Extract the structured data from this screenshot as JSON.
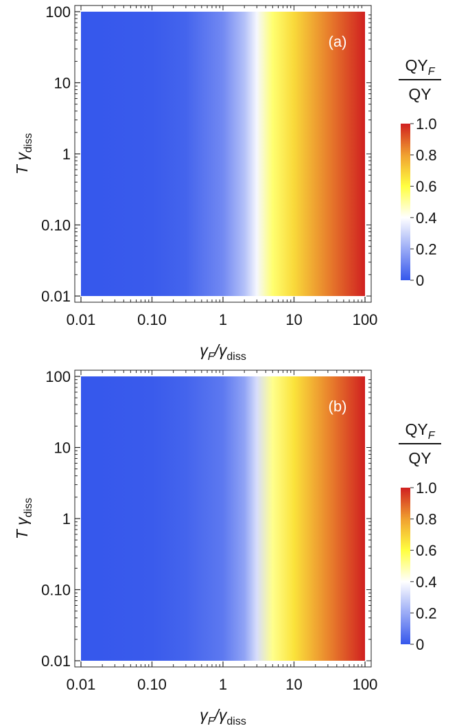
{
  "chart_data": [
    {
      "type": "heatmap",
      "panel_label": "(a)",
      "x_scale": "log",
      "y_scale": "log",
      "xlim": [
        0.01,
        100
      ],
      "ylim": [
        0.01,
        100
      ],
      "x_tick_labels": [
        "0.01",
        "0.10",
        "1",
        "10",
        "100"
      ],
      "y_tick_labels": [
        "0.01",
        "0.10",
        "1",
        "10",
        "100"
      ],
      "x_ticks": [
        0.01,
        0.1,
        1,
        10,
        100
      ],
      "y_ticks": [
        0.01,
        0.1,
        1,
        10,
        100
      ],
      "xlabel": {
        "main": "γ",
        "sub1": "F",
        "sep": "/γ",
        "sub2": "diss"
      },
      "ylabel": {
        "main": "T γ",
        "sub": "diss"
      },
      "colorbar": {
        "title_num": "QY",
        "title_num_sub": "F",
        "title_den": "QY",
        "range": [
          0,
          1
        ],
        "tick_labels": [
          "0",
          "0.2",
          "0.4",
          "0.6",
          "0.8",
          "1.0"
        ],
        "ticks": [
          0,
          0.2,
          0.4,
          0.6,
          0.8,
          1.0
        ]
      },
      "colors": [
        "#3557ec",
        "#ffffff",
        "#ffff40",
        "#f0a030",
        "#d02020"
      ],
      "value_vs_x": [
        {
          "x": 0.01,
          "value": 0.0
        },
        {
          "x": 0.1,
          "value": 0.01
        },
        {
          "x": 0.3,
          "value": 0.03
        },
        {
          "x": 1,
          "value": 0.12
        },
        {
          "x": 2,
          "value": 0.25
        },
        {
          "x": 3,
          "value": 0.38
        },
        {
          "x": 5,
          "value": 0.55
        },
        {
          "x": 10,
          "value": 0.68
        },
        {
          "x": 30,
          "value": 0.85
        },
        {
          "x": 100,
          "value": 1.0
        }
      ]
    },
    {
      "type": "heatmap",
      "panel_label": "(b)",
      "x_scale": "log",
      "y_scale": "log",
      "xlim": [
        0.01,
        100
      ],
      "ylim": [
        0.01,
        100
      ],
      "x_tick_labels": [
        "0.01",
        "0.10",
        "1",
        "10",
        "100"
      ],
      "y_tick_labels": [
        "0.01",
        "0.10",
        "1",
        "10",
        "100"
      ],
      "x_ticks": [
        0.01,
        0.1,
        1,
        10,
        100
      ],
      "y_ticks": [
        0.01,
        0.1,
        1,
        10,
        100
      ],
      "xlabel": {
        "main": "γ",
        "sub1": "F",
        "sep": "/γ",
        "sub2": "diss"
      },
      "ylabel": {
        "main": "T γ",
        "sub": "diss"
      },
      "colorbar": {
        "title_num": "QY",
        "title_num_sub": "F",
        "title_den": "QY",
        "range": [
          0,
          1
        ],
        "tick_labels": [
          "0",
          "0.2",
          "0.4",
          "0.6",
          "0.8",
          "1.0"
        ],
        "ticks": [
          0,
          0.2,
          0.4,
          0.6,
          0.8,
          1.0
        ]
      },
      "colors": [
        "#3557ec",
        "#ffffff",
        "#ffff40",
        "#f0a030",
        "#d02020"
      ],
      "value_vs_x": [
        {
          "x": 0.01,
          "value": 0.0
        },
        {
          "x": 0.1,
          "value": 0.01
        },
        {
          "x": 0.3,
          "value": 0.03
        },
        {
          "x": 1,
          "value": 0.08
        },
        {
          "x": 2,
          "value": 0.18
        },
        {
          "x": 3,
          "value": 0.32
        },
        {
          "x": 5,
          "value": 0.52
        },
        {
          "x": 10,
          "value": 0.66
        },
        {
          "x": 30,
          "value": 0.84
        },
        {
          "x": 100,
          "value": 1.0
        }
      ]
    }
  ]
}
